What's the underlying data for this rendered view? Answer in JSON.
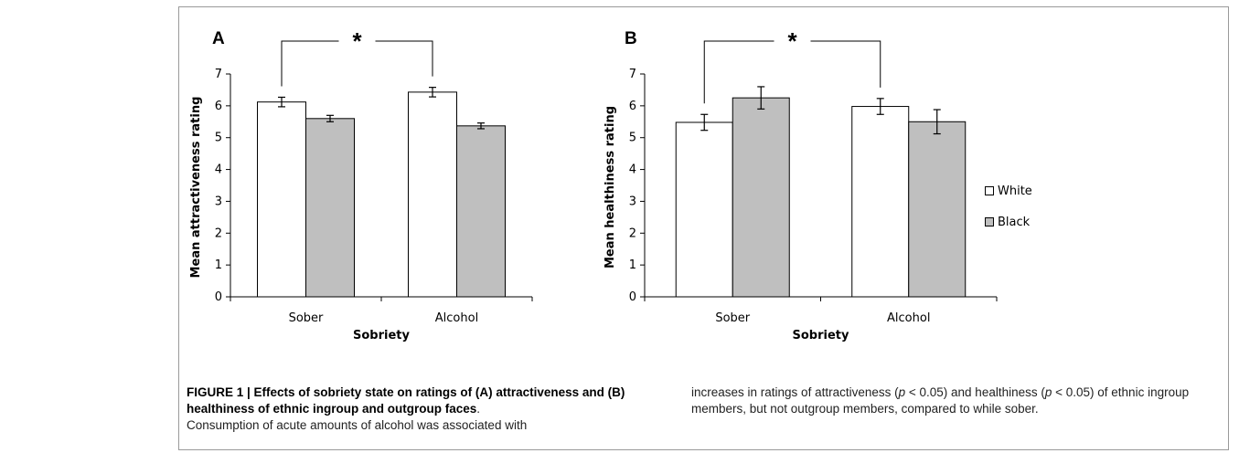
{
  "chart_data": [
    {
      "type": "bar",
      "panel_label": "A",
      "categories": [
        "Sober",
        "Alcohol"
      ],
      "series": [
        {
          "name": "White",
          "values": [
            6.12,
            6.43
          ],
          "errors": [
            0.15,
            0.15
          ]
        },
        {
          "name": "Black",
          "values": [
            5.6,
            5.37
          ],
          "errors": [
            0.1,
            0.09
          ]
        }
      ],
      "xlabel": "Sobriety",
      "ylabel": "Mean attractiveness rating",
      "ylim": [
        0,
        7
      ],
      "yticks": [
        "0",
        "1",
        "2",
        "3",
        "4",
        "5",
        "6",
        "7"
      ],
      "significance": "*",
      "grid": false
    },
    {
      "type": "bar",
      "panel_label": "B",
      "categories": [
        "Sober",
        "Alcohol"
      ],
      "series": [
        {
          "name": "White",
          "values": [
            5.48,
            5.98
          ],
          "errors": [
            0.25,
            0.25
          ]
        },
        {
          "name": "Black",
          "values": [
            6.25,
            5.5
          ],
          "errors": [
            0.35,
            0.38
          ]
        }
      ],
      "xlabel": "Sobriety",
      "ylabel": "Mean healthiness rating",
      "ylim": [
        0,
        7
      ],
      "yticks": [
        "0",
        "1",
        "2",
        "3",
        "4",
        "5",
        "6",
        "7"
      ],
      "significance": "*",
      "grid": false
    }
  ],
  "legend": [
    {
      "label": "White",
      "color": "#ffffff"
    },
    {
      "label": "Black",
      "color": "#bfbfbf"
    }
  ],
  "colors": {
    "white_bar": "#ffffff",
    "black_bar": "#bfbfbf",
    "outline": "#000000"
  },
  "caption": {
    "title": "FIGURE 1 | Effects of sobriety state on ratings of (A) attractiveness and (B) healthiness of ethnic ingroup and outgroup faces",
    "title_end": ".",
    "left_body": "Consumption of acute amounts of alcohol was associated with",
    "right_parts": [
      "increases in ratings of attractiveness (",
      "p",
      " < 0.05) and healthiness (",
      "p",
      " < 0.05) of ethnic ingroup members, but not outgroup members, compared to while sober."
    ]
  }
}
